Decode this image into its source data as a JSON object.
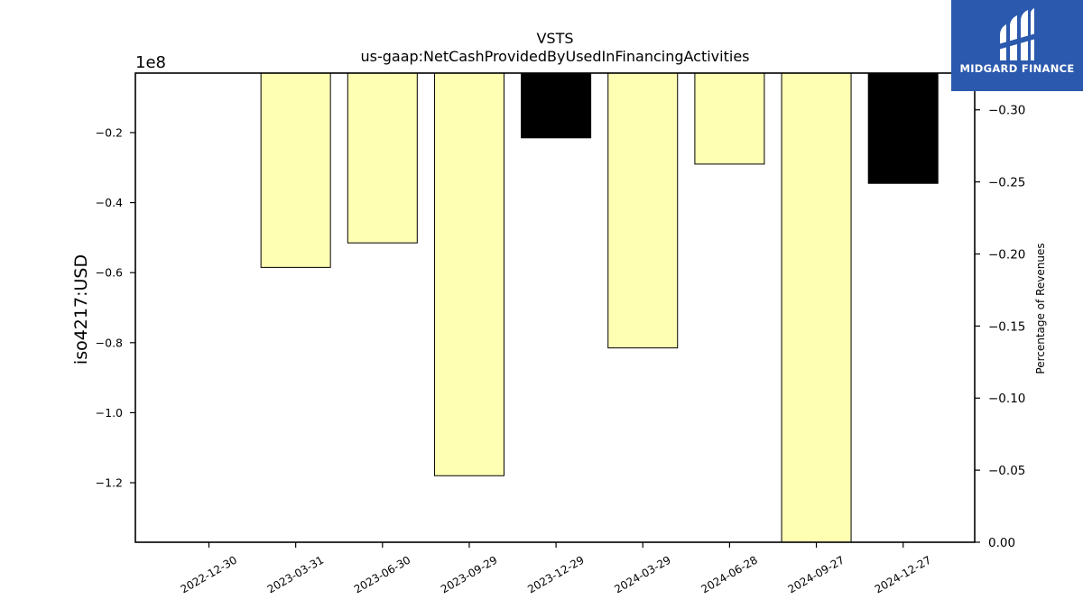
{
  "chart_data": {
    "type": "bar",
    "title": "VSTS",
    "subtitle": "us-gaap:NetCashProvidedByUsedInFinancingActivities",
    "ylabel": "iso4217:USD",
    "y2label": "Percentage of Revenues",
    "offset_label": "1e8",
    "categories": [
      "2022-12-30",
      "2023-03-31",
      "2023-06-30",
      "2023-09-29",
      "2023-12-29",
      "2024-03-29",
      "2024-06-28",
      "2024-09-27",
      "2024-12-27"
    ],
    "values": [
      0,
      -58500000,
      -51500000,
      -118000000,
      -21500000,
      -81500000,
      -29000000,
      -137000000,
      -34500000
    ],
    "bar_colors": [
      "#ffffb3",
      "#ffffb3",
      "#ffffb3",
      "#ffffb3",
      "#000000",
      "#ffffb3",
      "#ffffb3",
      "#ffffb3",
      "#000000"
    ],
    "ylim": [
      -137000000,
      -3000000
    ],
    "yticks": [
      -20000000,
      -40000000,
      -60000000,
      -80000000,
      -100000000,
      -120000000
    ],
    "ytick_labels": [
      "−0.2",
      "−0.4",
      "−0.6",
      "−0.8",
      "−1.0",
      "−1.2"
    ],
    "y2lim": [
      0,
      -0.3255
    ],
    "y2ticks": [
      0,
      -0.05,
      -0.1,
      -0.15,
      -0.2,
      -0.25,
      -0.3
    ],
    "y2tick_labels": [
      "0.00",
      "−0.05",
      "−0.10",
      "−0.15",
      "−0.20",
      "−0.25",
      "−0.30"
    ],
    "grid": false,
    "legend": "none"
  },
  "logo": {
    "text": "MIDGARD FINANCE",
    "background": "#2b59ad"
  }
}
